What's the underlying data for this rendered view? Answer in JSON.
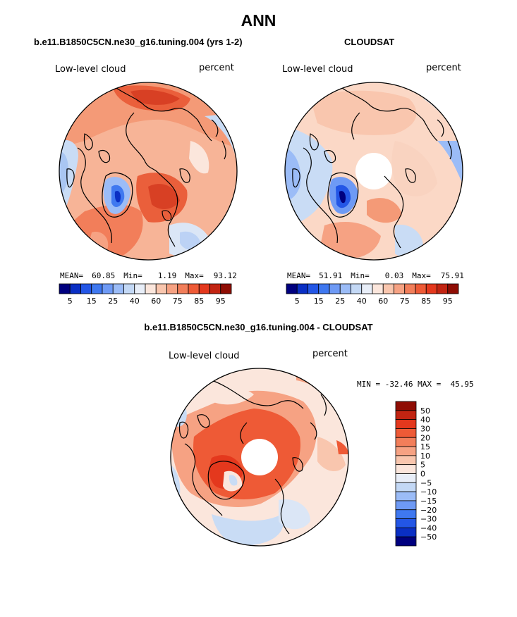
{
  "page_title": "ANN",
  "panels": [
    {
      "title": "b.e11.B1850C5CN.ne30_g16.tuning.004 (yrs 1-2)",
      "label_left": "Low-level cloud",
      "label_right": "percent",
      "stats": {
        "mean_label": "MEAN=",
        "mean": "60.85",
        "min_label": "Min=",
        "min": "1.19",
        "max_label": "Max=",
        "max": "93.12"
      }
    },
    {
      "title": "CLOUDSAT",
      "label_left": "Low-level cloud",
      "label_right": "percent",
      "stats": {
        "mean_label": "MEAN=",
        "mean": "51.91",
        "min_label": "Min=",
        "min": "0.03",
        "max_label": "Max=",
        "max": "75.91"
      }
    },
    {
      "title": "b.e11.B1850C5CN.ne30_g16.tuning.004 - CLOUDSAT",
      "label_left": "Low-level cloud",
      "label_right": "percent",
      "minmax": "MIN = -32.46 MAX =  45.95"
    }
  ],
  "colorbar_top": {
    "colors": [
      "#00007f",
      "#0a2fc4",
      "#2356e6",
      "#3f78f0",
      "#6e9af5",
      "#9bbcf7",
      "#c3d8f5",
      "#e8eef8",
      "#fbe6dc",
      "#f9c6ae",
      "#f6a283",
      "#f27e5a",
      "#ee5a36",
      "#e4381d",
      "#c22412",
      "#8f0d04"
    ],
    "ticks": [
      "5",
      "15",
      "25",
      "40",
      "60",
      "75",
      "85",
      "95"
    ]
  },
  "colorbar_diff": {
    "colors": [
      "#00007f",
      "#0a2fc4",
      "#2356e6",
      "#3f78f0",
      "#6e9af5",
      "#9bbcf7",
      "#c3d8f5",
      "#e8eef8",
      "#fbe6dc",
      "#f9c6ae",
      "#f6a283",
      "#f27e5a",
      "#ee5a36",
      "#e4381d",
      "#c22412",
      "#8f0d04"
    ],
    "ticks": [
      "50",
      "40",
      "30",
      "20",
      "15",
      "10",
      "5",
      "0",
      "−5",
      "−10",
      "−15",
      "−20",
      "−30",
      "−40",
      "−50"
    ]
  },
  "chart_data": [
    {
      "type": "heatmap",
      "title": "b.e11.B1850C5CN.ne30_g16.tuning.004 (yrs 1-2)",
      "variable": "Low-level cloud",
      "units": "percent",
      "mean": 60.85,
      "min": 1.19,
      "max": 93.12,
      "contour_levels": [
        5,
        10,
        15,
        20,
        25,
        30,
        40,
        45,
        55,
        60,
        65,
        75,
        80,
        85,
        90,
        95
      ],
      "colorbar_tick_labels": [
        5,
        15,
        25,
        40,
        60,
        75,
        85,
        95
      ],
      "projection": "north polar stereographic"
    },
    {
      "type": "heatmap",
      "title": "CLOUDSAT",
      "variable": "Low-level cloud",
      "units": "percent",
      "mean": 51.91,
      "min": 0.03,
      "max": 75.91,
      "contour_levels": [
        5,
        10,
        15,
        20,
        25,
        30,
        40,
        45,
        55,
        60,
        65,
        75,
        80,
        85,
        90,
        95
      ],
      "colorbar_tick_labels": [
        5,
        15,
        25,
        40,
        60,
        75,
        85,
        95
      ],
      "projection": "north polar stereographic"
    },
    {
      "type": "heatmap",
      "title": "b.e11.B1850C5CN.ne30_g16.tuning.004 - CLOUDSAT",
      "variable": "Low-level cloud",
      "units": "percent",
      "min": -32.46,
      "max": 45.95,
      "contour_levels": [
        -50,
        -40,
        -30,
        -20,
        -15,
        -10,
        -5,
        0,
        5,
        10,
        15,
        20,
        30,
        40,
        50
      ],
      "projection": "north polar stereographic"
    }
  ]
}
